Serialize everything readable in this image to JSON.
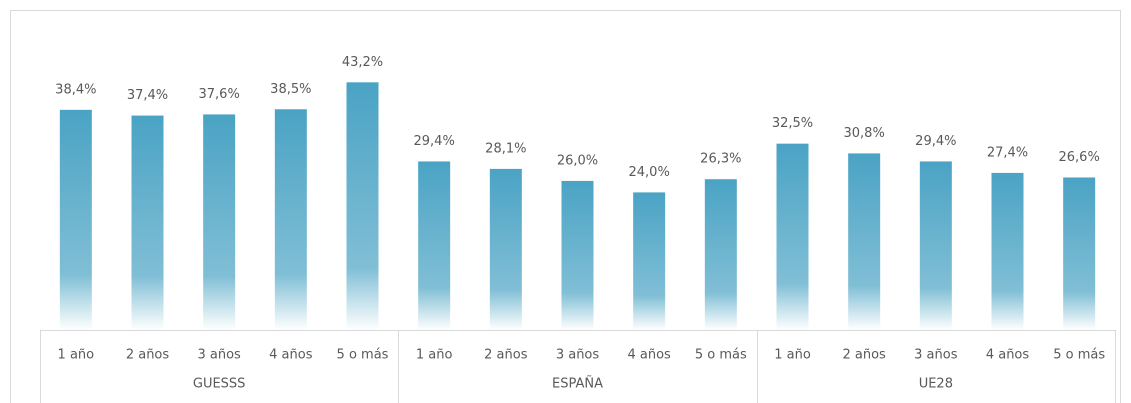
{
  "chart_data": {
    "type": "bar",
    "categories": [
      "1 año",
      "2 años",
      "3 años",
      "4 años",
      "5 o más",
      "1 año",
      "2 años",
      "3 años",
      "4 años",
      "5 o más",
      "1 año",
      "2 años",
      "3 años",
      "4 años",
      "5 o más"
    ],
    "groups": [
      "GUESSS",
      "ESPAÑA",
      "UE28"
    ],
    "values": [
      38.4,
      37.4,
      37.6,
      38.5,
      43.2,
      29.4,
      28.1,
      26.0,
      24.0,
      26.3,
      32.5,
      30.8,
      29.4,
      27.4,
      26.6
    ],
    "value_labels": [
      "38,4%",
      "37,4%",
      "37,6%",
      "38,5%",
      "43,2%",
      "29,4%",
      "28,1%",
      "26,0%",
      "24,0%",
      "26,3%",
      "32,5%",
      "30,8%",
      "29,4%",
      "27,4%",
      "26,6%"
    ],
    "color": "#4aa3c4",
    "ylim": [
      0,
      45
    ]
  }
}
